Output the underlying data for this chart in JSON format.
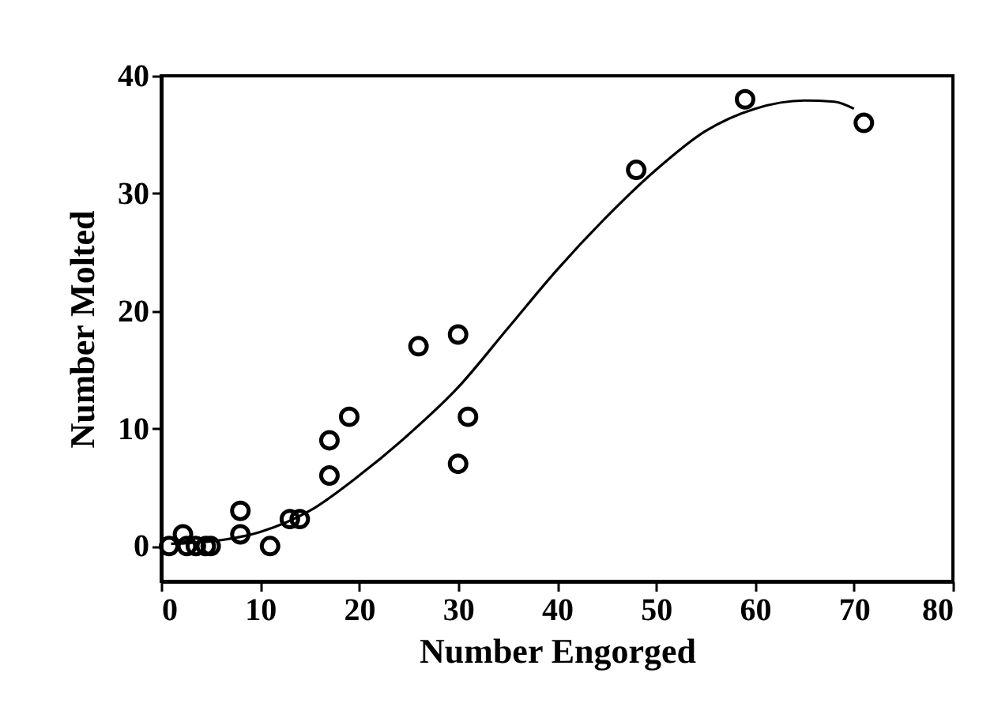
{
  "chart_data": {
    "type": "scatter",
    "xlabel": "Number Engorged",
    "ylabel": "Number Molted",
    "xlim": [
      0,
      80
    ],
    "xticks": [
      0,
      10,
      20,
      30,
      40,
      50,
      60,
      70,
      80
    ],
    "ylim": [
      -3,
      40
    ],
    "yticks": [
      0,
      10,
      20,
      30,
      40
    ],
    "grid": false,
    "series": [
      {
        "color": "#000000",
        "marker": "circle",
        "x": [
          0.8,
          2.2,
          2.6,
          3.5,
          4.5,
          5,
          8,
          8,
          11,
          13,
          14,
          17,
          17,
          19,
          26,
          30,
          30,
          31,
          48,
          59,
          71
        ],
        "values": [
          0,
          1,
          0,
          0,
          0,
          0,
          3,
          1,
          0,
          2.3,
          2.3,
          6,
          9,
          11,
          17,
          18,
          7,
          11,
          32,
          38,
          36
        ]
      },
      {
        "type": "line",
        "color": "#000000",
        "line_style": "solid",
        "x": [
          1,
          5,
          10,
          15,
          20,
          25,
          30,
          35,
          40,
          45,
          50,
          55,
          60,
          65,
          68,
          70
        ],
        "values": [
          0.2,
          0.4,
          1.2,
          3,
          6,
          9.5,
          13.5,
          18.5,
          23.5,
          28,
          32,
          35.3,
          37.2,
          37.9,
          37.8,
          37.2
        ]
      }
    ]
  }
}
